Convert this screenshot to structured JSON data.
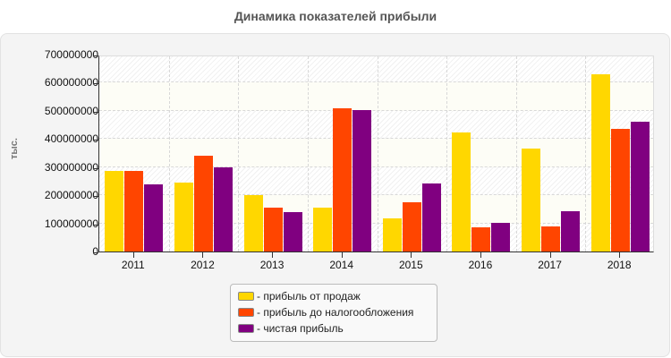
{
  "chart_data": {
    "type": "bar",
    "title": "Динамика показателей прибыли",
    "xlabel": "",
    "ylabel": "тыс.",
    "ylim": [
      0,
      700000000
    ],
    "yticks": [
      "0",
      "100000000",
      "200000000",
      "300000000",
      "400000000",
      "500000000",
      "600000000",
      "700000000"
    ],
    "grid": true,
    "legend_position": "bottom-center",
    "categories": [
      "2011",
      "2012",
      "2013",
      "2014",
      "2015",
      "2016",
      "2017",
      "2018"
    ],
    "series": [
      {
        "name": "- прибыль от продаж",
        "color": "#FFD700",
        "values": [
          287000000,
          246000000,
          201000000,
          157000000,
          118000000,
          423000000,
          365000000,
          630000000
        ]
      },
      {
        "name": "- прибыль до налогообложения",
        "color": "#FF4500",
        "values": [
          287000000,
          340000000,
          157000000,
          510000000,
          175000000,
          87000000,
          88000000,
          437000000
        ]
      },
      {
        "name": "- чистая прибыль",
        "color": "#800080",
        "values": [
          239000000,
          300000000,
          141000000,
          504000000,
          242000000,
          102000000,
          143000000,
          463000000
        ]
      }
    ]
  }
}
